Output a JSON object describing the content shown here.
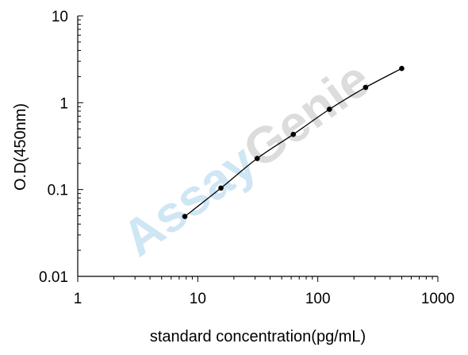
{
  "chart_data": {
    "type": "line",
    "title": "",
    "xlabel": "standard concentration(pg/mL)",
    "ylabel": "O.D(450nm)",
    "xscale": "log",
    "yscale": "log",
    "xlim": [
      1,
      1000
    ],
    "ylim": [
      0.01,
      10
    ],
    "xticks": [
      "1",
      "10",
      "100",
      "1000"
    ],
    "yticks": [
      "0.01",
      "0.1",
      "1",
      "10"
    ],
    "grid": false,
    "legend": "none",
    "series": [
      {
        "marker": "circle",
        "color": "#000000",
        "x": [
          7.8,
          15.6,
          31.25,
          62.5,
          125,
          250,
          500
        ],
        "y": [
          0.049,
          0.104,
          0.228,
          0.432,
          0.84,
          1.5,
          2.48
        ]
      }
    ],
    "watermark": {
      "text": "AssayGenie",
      "part1": "Assay",
      "part2": "Genie",
      "color1": "#cfe6f4",
      "color2": "#dcdcdc"
    }
  }
}
